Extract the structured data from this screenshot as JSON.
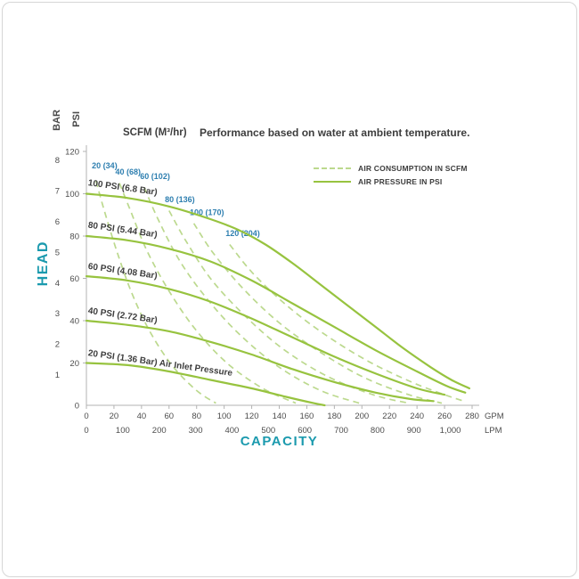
{
  "header": {
    "scfm_label": "SCFM (M³/hr)",
    "title": "Performance based on water at ambient temperature."
  },
  "legend": {
    "position": "top-right",
    "items": [
      {
        "label": "AIR CONSUMPTION IN SCFM",
        "style": "dashed"
      },
      {
        "label": "AIR PRESSURE IN PSI",
        "style": "solid"
      }
    ]
  },
  "axis_titles": {
    "head": "HEAD",
    "bar": "BAR",
    "psi": "PSI",
    "capacity": "CAPACITY"
  },
  "colors": {
    "green": "#97c33f",
    "green_light": "#bcd98e",
    "teal": "#1b9aae",
    "blue": "#2e7fb0",
    "text": "#3d3d3d",
    "axis": "#b3b3b3",
    "axis_text": "#4d4d4d"
  },
  "chart_data": {
    "type": "line",
    "title": "Performance based on water at ambient temperature.",
    "grid": false,
    "legend_position": "top-right",
    "x_axis": {
      "label_primary": "GPM",
      "ticks_gpm": [
        0,
        20,
        40,
        60,
        80,
        100,
        120,
        140,
        160,
        180,
        200,
        220,
        240,
        260,
        280
      ],
      "label_secondary": "LPM",
      "ticks_lpm": [
        0,
        100,
        200,
        300,
        400,
        500,
        600,
        700,
        800,
        900,
        1000
      ],
      "lpm_per_gpm": 3.785,
      "xlim_gpm": [
        0,
        280
      ]
    },
    "y_axis": {
      "label_primary": "PSI",
      "ticks_psi": [
        0,
        20,
        40,
        60,
        80,
        100,
        120
      ],
      "label_secondary": "BAR",
      "ticks_bar": [
        1,
        2,
        3,
        4,
        5,
        6,
        7,
        8
      ],
      "psi_per_bar": 14.5,
      "ylim_psi": [
        0,
        120
      ],
      "axis_group_title": "HEAD"
    },
    "series_pressure": [
      {
        "psi": 100,
        "bar": 6.8,
        "label": "100 PSI (6.8 Bar)",
        "label_at": [
          1,
          104
        ],
        "label_angle": 8,
        "points": [
          [
            0,
            100
          ],
          [
            30,
            98
          ],
          [
            60,
            94
          ],
          [
            90,
            88
          ],
          [
            110,
            83
          ],
          [
            130,
            76
          ],
          [
            150,
            67
          ],
          [
            170,
            57
          ],
          [
            190,
            47
          ],
          [
            210,
            37
          ],
          [
            230,
            27
          ],
          [
            250,
            18
          ],
          [
            265,
            12
          ],
          [
            278,
            8
          ]
        ]
      },
      {
        "psi": 80,
        "bar": 5.44,
        "label": "80 PSI (5.44 Bar)",
        "label_at": [
          1,
          84
        ],
        "label_angle": 8,
        "points": [
          [
            0,
            80
          ],
          [
            30,
            78
          ],
          [
            60,
            74
          ],
          [
            90,
            68
          ],
          [
            120,
            59
          ],
          [
            150,
            48
          ],
          [
            180,
            37
          ],
          [
            210,
            26
          ],
          [
            240,
            16
          ],
          [
            262,
            9
          ],
          [
            275,
            6
          ]
        ]
      },
      {
        "psi": 60,
        "bar": 4.08,
        "label": "60 PSI (4.08 Bar)",
        "label_at": [
          1,
          64.5
        ],
        "label_angle": 8,
        "points": [
          [
            0,
            61
          ],
          [
            30,
            59
          ],
          [
            60,
            55
          ],
          [
            90,
            49
          ],
          [
            120,
            41
          ],
          [
            150,
            32
          ],
          [
            180,
            23
          ],
          [
            210,
            15
          ],
          [
            240,
            8
          ],
          [
            260,
            5
          ]
        ]
      },
      {
        "psi": 40,
        "bar": 2.72,
        "label": "40 PSI (2.72 Bar)",
        "label_at": [
          1,
          43.5
        ],
        "label_angle": 8,
        "points": [
          [
            0,
            40
          ],
          [
            30,
            38
          ],
          [
            60,
            35
          ],
          [
            90,
            30
          ],
          [
            120,
            24
          ],
          [
            150,
            17
          ],
          [
            180,
            11
          ],
          [
            210,
            6
          ],
          [
            235,
            3
          ],
          [
            252,
            2
          ]
        ]
      },
      {
        "psi": 20,
        "bar": 1.36,
        "label": "20 PSI (1.36 Bar) Air Inlet Pressure",
        "label_at": [
          1,
          23.5
        ],
        "label_angle": 8,
        "points": [
          [
            0,
            20
          ],
          [
            30,
            19
          ],
          [
            60,
            16
          ],
          [
            90,
            12
          ],
          [
            120,
            8
          ],
          [
            145,
            4
          ],
          [
            165,
            1
          ],
          [
            173,
            0
          ]
        ]
      }
    ],
    "series_consumption": [
      {
        "scfm": 20,
        "m3hr": 34,
        "label": "20 (34)",
        "label_at": [
          4,
          112
        ],
        "points": [
          [
            7,
            106
          ],
          [
            13,
            92
          ],
          [
            22,
            73
          ],
          [
            33,
            53
          ],
          [
            46,
            35
          ],
          [
            62,
            19
          ],
          [
            80,
            7
          ],
          [
            94,
            1
          ]
        ]
      },
      {
        "scfm": 40,
        "m3hr": 68,
        "label": "40 (68)",
        "label_at": [
          21,
          109
        ],
        "points": [
          [
            24,
            105
          ],
          [
            32,
            92
          ],
          [
            44,
            73
          ],
          [
            60,
            54
          ],
          [
            79,
            36
          ],
          [
            102,
            20
          ],
          [
            128,
            8
          ],
          [
            152,
            1
          ]
        ]
      },
      {
        "scfm": 60,
        "m3hr": 102,
        "label": "60 (102)",
        "label_at": [
          39,
          107
        ],
        "points": [
          [
            42,
            103
          ],
          [
            52,
            88
          ],
          [
            68,
            68
          ],
          [
            88,
            50
          ],
          [
            112,
            33
          ],
          [
            140,
            18
          ],
          [
            170,
            7
          ],
          [
            198,
            1
          ]
        ]
      },
      {
        "scfm": 80,
        "m3hr": 136,
        "label": "80 (136)",
        "label_at": [
          57,
          96
        ],
        "points": [
          [
            60,
            92
          ],
          [
            72,
            78
          ],
          [
            90,
            60
          ],
          [
            114,
            43
          ],
          [
            142,
            27
          ],
          [
            174,
            14
          ],
          [
            208,
            5
          ],
          [
            234,
            1
          ]
        ]
      },
      {
        "scfm": 100,
        "m3hr": 170,
        "label": "100 (170)",
        "label_at": [
          75,
          90
        ],
        "points": [
          [
            78,
            86
          ],
          [
            92,
            72
          ],
          [
            114,
            55
          ],
          [
            140,
            39
          ],
          [
            170,
            25
          ],
          [
            202,
            13
          ],
          [
            234,
            5
          ],
          [
            258,
            1
          ]
        ]
      },
      {
        "scfm": 120,
        "m3hr": 204,
        "label": "120 (204)",
        "label_at": [
          101,
          80
        ],
        "points": [
          [
            104,
            76
          ],
          [
            120,
            63
          ],
          [
            144,
            48
          ],
          [
            172,
            34
          ],
          [
            204,
            21
          ],
          [
            236,
            11
          ],
          [
            260,
            5
          ],
          [
            274,
            2
          ]
        ]
      }
    ]
  }
}
